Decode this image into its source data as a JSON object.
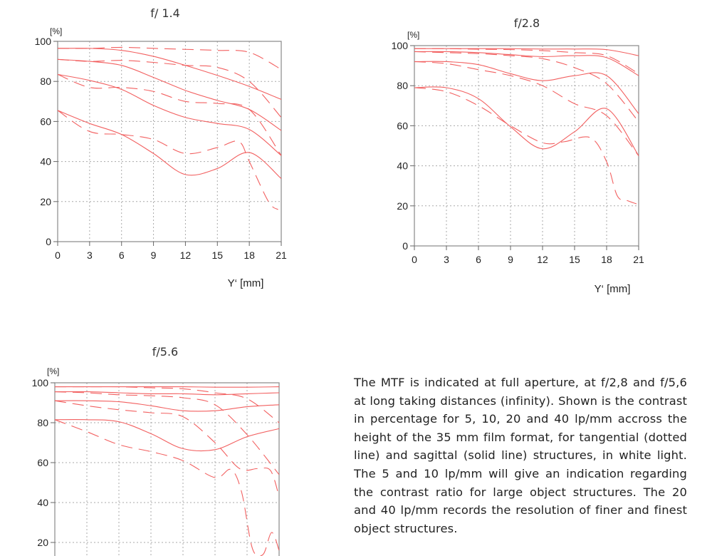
{
  "description": "The MTF is indicated at full aperture, at f/2,8 and f/5,6 at long taking distances (infinity). Shown is the contrast in percentage for 5, 10, 20 and 40 lp/mm accross the height of the 35 mm film format, for tangential (dotted line) and sagittal (solid line) structures, in white light. The 5 and 10 lp/mm will give an indication regarding the contrast ratio for large object structures. The 20 and 40 lp/mm records the resolution of finer and finest object structures.",
  "colors": {
    "curve": "#f26060",
    "grid": "#aaaaaa",
    "axis": "#888888"
  },
  "chart_data": [
    {
      "type": "line",
      "title": "f/ 1.4",
      "ylabel": "[%]",
      "xlabel": "Y‘ [mm]",
      "xlim": [
        0,
        21
      ],
      "ylim": [
        0,
        100
      ],
      "xticks": [
        "0",
        "3",
        "6",
        "9",
        "12",
        "15",
        "18",
        "21"
      ],
      "yticks": [
        "0",
        "20",
        "40",
        "60",
        "80",
        "100"
      ],
      "grid": true,
      "series": [
        {
          "name": "5 lp/mm sagittal",
          "style": "solid",
          "x": [
            0,
            3,
            6,
            9,
            12,
            15,
            18,
            21
          ],
          "y": [
            96.5,
            96.5,
            95.5,
            92.5,
            88,
            83,
            77.5,
            71
          ]
        },
        {
          "name": "5 lp/mm tangential",
          "style": "dashed",
          "x": [
            0,
            3,
            6,
            9,
            12,
            15,
            18,
            21
          ],
          "y": [
            96.5,
            96.5,
            97,
            96.5,
            96,
            95.5,
            94.5,
            86
          ]
        },
        {
          "name": "10 lp/mm sagittal",
          "style": "solid",
          "x": [
            0,
            3,
            6,
            9,
            12,
            15,
            18,
            21
          ],
          "y": [
            91,
            90,
            88,
            82,
            75.5,
            70.5,
            66,
            55.5
          ]
        },
        {
          "name": "10 lp/mm tangential",
          "style": "dashed",
          "x": [
            0,
            3,
            6,
            9,
            12,
            15,
            18,
            21
          ],
          "y": [
            91,
            90,
            90.5,
            89.5,
            88,
            87,
            80,
            62
          ]
        },
        {
          "name": "20 lp/mm sagittal",
          "style": "solid",
          "x": [
            0,
            3,
            6,
            9,
            12,
            15,
            18,
            21
          ],
          "y": [
            83.5,
            80.5,
            76,
            68,
            62,
            59,
            56,
            43
          ]
        },
        {
          "name": "20 lp/mm tangential",
          "style": "dashed",
          "x": [
            0,
            3,
            6,
            9,
            12,
            15,
            18,
            21
          ],
          "y": [
            83.5,
            77,
            77,
            75,
            70,
            69,
            66,
            43
          ]
        },
        {
          "name": "40 lp/mm sagittal",
          "style": "solid",
          "x": [
            0,
            3,
            6,
            9,
            12,
            15,
            18,
            21
          ],
          "y": [
            65.5,
            59,
            53.5,
            44,
            33.5,
            36.5,
            44.5,
            31.5
          ]
        },
        {
          "name": "40 lp/mm tangential",
          "style": "dashed",
          "x": [
            0,
            3,
            6,
            9,
            12,
            15,
            17,
            18,
            19.8,
            20.7
          ],
          "y": [
            65.5,
            55,
            53.5,
            51,
            44,
            47,
            50,
            40,
            20,
            16
          ]
        }
      ]
    },
    {
      "type": "line",
      "title": "f/2.8",
      "ylabel": "[%]",
      "xlabel": "Y‘ [mm]",
      "xlim": [
        0,
        21
      ],
      "ylim": [
        0,
        100
      ],
      "xticks": [
        "0",
        "3",
        "6",
        "9",
        "12",
        "15",
        "18",
        "21"
      ],
      "yticks": [
        "0",
        "20",
        "40",
        "60",
        "80",
        "100"
      ],
      "grid": true,
      "series": [
        {
          "name": "5 lp/mm sagittal",
          "style": "solid",
          "x": [
            0,
            3,
            6,
            9,
            12,
            15,
            18,
            21
          ],
          "y": [
            98.5,
            98.5,
            98.5,
            98.5,
            98.3,
            98.3,
            98,
            95
          ]
        },
        {
          "name": "5 lp/mm tangential",
          "style": "dashed",
          "x": [
            0,
            3,
            6,
            9,
            12,
            15,
            18,
            21
          ],
          "y": [
            98.5,
            98.5,
            98.2,
            98,
            97.5,
            96.5,
            95,
            86
          ]
        },
        {
          "name": "10 lp/mm sagittal",
          "style": "solid",
          "x": [
            0,
            3,
            6,
            9,
            12,
            15,
            18,
            21
          ],
          "y": [
            97,
            97,
            96.5,
            95.5,
            94.5,
            95,
            94,
            85
          ]
        },
        {
          "name": "10 lp/mm tangential",
          "style": "dashed",
          "x": [
            0,
            3,
            6,
            9,
            12,
            15,
            18,
            21
          ],
          "y": [
            97,
            96.5,
            96,
            95,
            93.5,
            89,
            81,
            62
          ]
        },
        {
          "name": "20 lp/mm sagittal",
          "style": "solid",
          "x": [
            0,
            3,
            6,
            9,
            12,
            15,
            18,
            21
          ],
          "y": [
            92,
            92,
            90.5,
            86,
            82.5,
            85,
            85,
            66
          ]
        },
        {
          "name": "20 lp/mm tangential",
          "style": "dashed",
          "x": [
            0,
            3,
            6,
            9,
            12,
            15,
            18,
            21
          ],
          "y": [
            92,
            91,
            88,
            85,
            80,
            71,
            65,
            45
          ]
        },
        {
          "name": "40 lp/mm sagittal",
          "style": "solid",
          "x": [
            0,
            3,
            6,
            9,
            12,
            15,
            18,
            21
          ],
          "y": [
            79,
            79,
            73.5,
            59.5,
            48.5,
            57,
            68.5,
            45
          ]
        },
        {
          "name": "40 lp/mm tangential",
          "style": "dashed",
          "x": [
            0,
            3,
            6,
            9,
            12,
            14,
            16.5,
            18,
            19,
            20,
            20.8
          ],
          "y": [
            79,
            77,
            70,
            60,
            51.5,
            52,
            54,
            42,
            25,
            22.5,
            21
          ]
        }
      ]
    },
    {
      "type": "line",
      "title": "f/5.6",
      "ylabel": "[%]",
      "xlabel": "",
      "xlim": [
        0,
        21
      ],
      "ylim": [
        0,
        100
      ],
      "xticks": [],
      "yticks": [
        "20",
        "40",
        "60",
        "80",
        "100"
      ],
      "grid": true,
      "series": [
        {
          "name": "5 lp/mm sagittal",
          "style": "solid",
          "x": [
            0,
            3,
            6,
            9,
            12,
            15,
            18,
            21
          ],
          "y": [
            98,
            98,
            98,
            98,
            98,
            97.8,
            97.8,
            98
          ]
        },
        {
          "name": "5 lp/mm tangential",
          "style": "dashed",
          "x": [
            0,
            3,
            6,
            9,
            12,
            15,
            18,
            21
          ],
          "y": [
            98,
            98,
            98,
            97.5,
            97,
            95,
            92,
            80
          ]
        },
        {
          "name": "10 lp/mm sagittal",
          "style": "solid",
          "x": [
            0,
            3,
            6,
            9,
            12,
            15,
            18,
            21
          ],
          "y": [
            95.5,
            95.5,
            95,
            94.5,
            94.5,
            94,
            94.5,
            95
          ]
        },
        {
          "name": "10 lp/mm tangential",
          "style": "dashed",
          "x": [
            0,
            3,
            6,
            9,
            12,
            15,
            18,
            21
          ],
          "y": [
            95.5,
            95,
            94,
            93.5,
            92.5,
            89,
            74,
            54
          ]
        },
        {
          "name": "20 lp/mm sagittal",
          "style": "solid",
          "x": [
            0,
            3,
            6,
            9,
            12,
            15,
            18,
            21
          ],
          "y": [
            91,
            91,
            90.5,
            88.5,
            86,
            86,
            88,
            89
          ]
        },
        {
          "name": "20 lp/mm tangential",
          "style": "dashed",
          "x": [
            0,
            3,
            6,
            9,
            12,
            15,
            17.3,
            19,
            20.2,
            21
          ],
          "y": [
            91,
            88.5,
            86.5,
            85,
            83,
            70,
            57,
            57,
            56,
            43
          ]
        },
        {
          "name": "40 lp/mm sagittal",
          "style": "solid",
          "x": [
            0,
            3,
            6,
            9,
            12,
            15,
            18,
            21
          ],
          "y": [
            81.5,
            81.5,
            80.5,
            74.5,
            67,
            66.5,
            73,
            77
          ]
        },
        {
          "name": "40 lp/mm tangential",
          "style": "dashed",
          "x": [
            0,
            3,
            6,
            9,
            12,
            15,
            16.5,
            17.5,
            18.5,
            19.5,
            20.3,
            21
          ],
          "y": [
            81.5,
            75.5,
            69,
            65.5,
            61,
            52.5,
            56.5,
            45,
            17,
            14,
            25,
            16
          ]
        }
      ]
    }
  ]
}
